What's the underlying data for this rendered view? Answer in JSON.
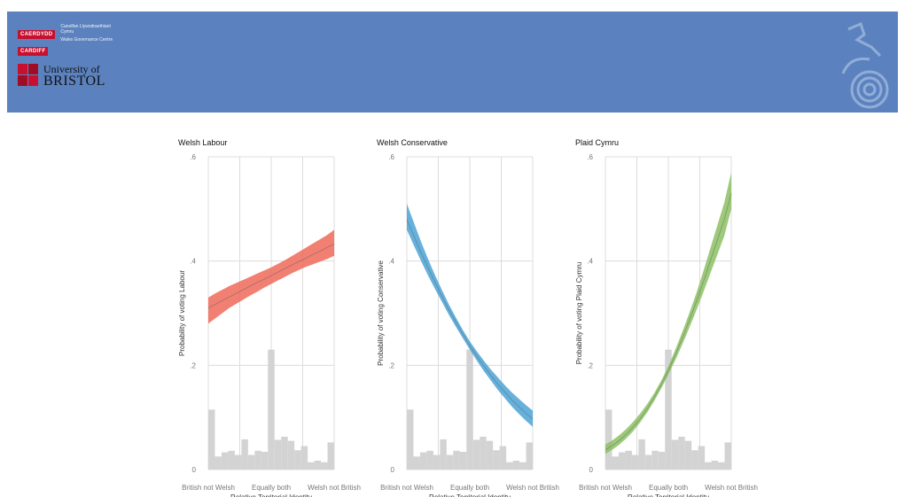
{
  "header": {
    "cardiff_logo_1": "CAERDYDD",
    "cardiff_logo_2": "CARDIFF",
    "cardiff_text_1": "Canolfan Llywodraethiant Cymru",
    "cardiff_text_2": "Wales Governance Centre",
    "bristol_line_1": "University of",
    "bristol_line_2": "BRISTOL"
  },
  "chart_data": [
    {
      "type": "line",
      "title": "Welsh Labour",
      "ylabel": "Probability of voting Labour",
      "xlabel": "Relative Territorial Identity",
      "x_ticks": [
        "British not Welsh",
        "Equally both",
        "Welsh not British"
      ],
      "y_ticks": [
        0,
        0.2,
        0.4,
        0.6
      ],
      "y_tick_labels": [
        "0",
        ".2",
        ".4",
        ".6"
      ],
      "ylim": [
        0,
        0.6
      ],
      "color": "#ee6a5a",
      "series": [
        {
          "x": [
            1,
            2,
            3,
            4,
            5,
            6,
            7,
            8,
            9,
            10,
            11,
            12,
            13,
            14,
            15,
            16,
            17,
            18,
            19
          ],
          "y": [
            0.31,
            0.317,
            0.324,
            0.331,
            0.338,
            0.345,
            0.352,
            0.359,
            0.365,
            0.372,
            0.379,
            0.386,
            0.393,
            0.399,
            0.406,
            0.413,
            0.419,
            0.426,
            0.433
          ],
          "lower": [
            0.28,
            0.29,
            0.3,
            0.31,
            0.318,
            0.326,
            0.334,
            0.341,
            0.349,
            0.356,
            0.363,
            0.37,
            0.377,
            0.383,
            0.389,
            0.394,
            0.399,
            0.404,
            0.41
          ],
          "upper": [
            0.33,
            0.338,
            0.345,
            0.352,
            0.358,
            0.364,
            0.37,
            0.376,
            0.382,
            0.388,
            0.395,
            0.402,
            0.41,
            0.418,
            0.426,
            0.434,
            0.442,
            0.45,
            0.46
          ]
        }
      ],
      "histogram": [
        0.115,
        0.025,
        0.033,
        0.036,
        0.028,
        0.058,
        0.028,
        0.036,
        0.034,
        0.23,
        0.057,
        0.063,
        0.055,
        0.037,
        0.045,
        0.014,
        0.017,
        0.014,
        0.052
      ]
    },
    {
      "type": "line",
      "title": "Welsh Conservative",
      "ylabel": "Probability of voting Conservative",
      "xlabel": "Relative Territorial Identity",
      "x_ticks": [
        "British not Welsh",
        "Equally both",
        "Welsh not British"
      ],
      "y_ticks": [
        0,
        0.2,
        0.4,
        0.6
      ],
      "y_tick_labels": [
        "0",
        ".2",
        ".4",
        ".6"
      ],
      "ylim": [
        0,
        0.6
      ],
      "color": "#4ba3d6",
      "series": [
        {
          "x": [
            1,
            2,
            3,
            4,
            5,
            6,
            7,
            8,
            9,
            10,
            11,
            12,
            13,
            14,
            15,
            16,
            17,
            18,
            19
          ],
          "y": [
            0.48,
            0.448,
            0.417,
            0.388,
            0.36,
            0.333,
            0.307,
            0.283,
            0.26,
            0.238,
            0.218,
            0.199,
            0.181,
            0.164,
            0.149,
            0.134,
            0.121,
            0.108,
            0.097
          ],
          "lower": [
            0.46,
            0.43,
            0.401,
            0.373,
            0.347,
            0.322,
            0.297,
            0.274,
            0.252,
            0.23,
            0.209,
            0.189,
            0.171,
            0.153,
            0.137,
            0.121,
            0.107,
            0.094,
            0.082
          ],
          "upper": [
            0.51,
            0.474,
            0.438,
            0.405,
            0.374,
            0.345,
            0.317,
            0.292,
            0.268,
            0.246,
            0.227,
            0.209,
            0.192,
            0.177,
            0.162,
            0.148,
            0.136,
            0.124,
            0.113
          ]
        }
      ],
      "histogram": [
        0.115,
        0.025,
        0.033,
        0.036,
        0.028,
        0.058,
        0.028,
        0.036,
        0.034,
        0.23,
        0.057,
        0.063,
        0.055,
        0.037,
        0.045,
        0.014,
        0.017,
        0.014,
        0.052
      ]
    },
    {
      "type": "line",
      "title": "Plaid Cymru",
      "ylabel": "Probability of voting Plaid Cymru",
      "xlabel": "Relative Territorial Identity",
      "x_ticks": [
        "British not Welsh",
        "Equally both",
        "Welsh not British"
      ],
      "y_ticks": [
        0,
        0.2,
        0.4,
        0.6
      ],
      "y_tick_labels": [
        "0",
        ".2",
        ".4",
        ".6"
      ],
      "ylim": [
        0,
        0.6
      ],
      "color": "#8cc063",
      "series": [
        {
          "x": [
            1,
            2,
            3,
            4,
            5,
            6,
            7,
            8,
            9,
            10,
            11,
            12,
            13,
            14,
            15,
            16,
            17,
            18,
            19
          ],
          "y": [
            0.038,
            0.046,
            0.056,
            0.068,
            0.082,
            0.098,
            0.117,
            0.139,
            0.163,
            0.19,
            0.22,
            0.252,
            0.286,
            0.322,
            0.36,
            0.4,
            0.44,
            0.48,
            0.53
          ],
          "lower": [
            0.03,
            0.038,
            0.048,
            0.06,
            0.074,
            0.091,
            0.11,
            0.132,
            0.156,
            0.182,
            0.21,
            0.24,
            0.272,
            0.305,
            0.34,
            0.376,
            0.412,
            0.448,
            0.5
          ],
          "upper": [
            0.048,
            0.056,
            0.066,
            0.078,
            0.092,
            0.108,
            0.126,
            0.147,
            0.171,
            0.198,
            0.23,
            0.264,
            0.3,
            0.338,
            0.38,
            0.424,
            0.468,
            0.512,
            0.57
          ]
        }
      ],
      "histogram": [
        0.115,
        0.025,
        0.033,
        0.036,
        0.028,
        0.058,
        0.028,
        0.036,
        0.034,
        0.23,
        0.057,
        0.063,
        0.055,
        0.037,
        0.045,
        0.014,
        0.017,
        0.014,
        0.052
      ]
    }
  ]
}
